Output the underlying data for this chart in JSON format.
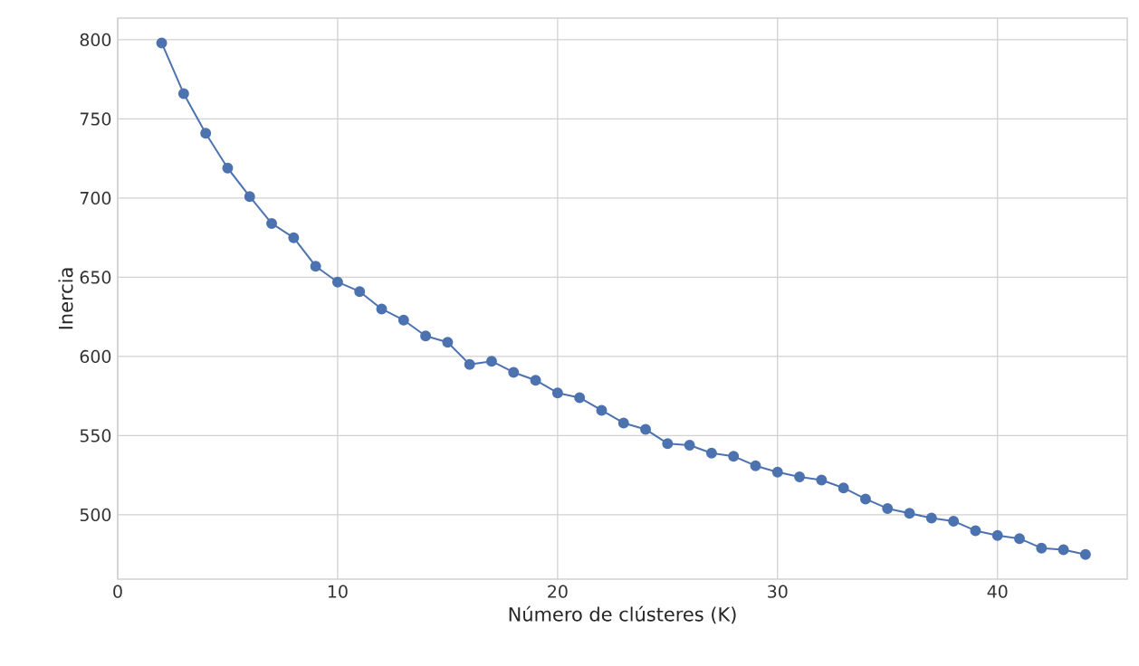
{
  "chart_data": {
    "type": "line",
    "xlabel": "Número de clústeres (K)",
    "ylabel": "Inercia",
    "x": [
      2,
      3,
      4,
      5,
      6,
      7,
      8,
      9,
      10,
      11,
      12,
      13,
      14,
      15,
      16,
      17,
      18,
      19,
      20,
      21,
      22,
      23,
      24,
      25,
      26,
      27,
      28,
      29,
      30,
      31,
      32,
      33,
      34,
      35,
      36,
      37,
      38,
      39,
      40,
      41,
      42,
      43,
      44
    ],
    "series": [
      {
        "color": "#4c72b0",
        "values": [
          798,
          766,
          741,
          719,
          701,
          684,
          675,
          657,
          647,
          641,
          630,
          623,
          613,
          609,
          595,
          597,
          590,
          585,
          577,
          574,
          566,
          558,
          554,
          545,
          544,
          539,
          537,
          531,
          527,
          524,
          522,
          517,
          510,
          504,
          501,
          498,
          496,
          490,
          487,
          485,
          479,
          478,
          475
        ]
      }
    ],
    "xlim": [
      0,
      45.9
    ],
    "ylim": [
      459.4,
      813.7
    ],
    "xticks": [
      0,
      10,
      20,
      30,
      40
    ],
    "yticks": [
      500,
      550,
      600,
      650,
      700,
      750,
      800
    ],
    "grid": true,
    "marker": "circle",
    "line_style": "solid"
  }
}
